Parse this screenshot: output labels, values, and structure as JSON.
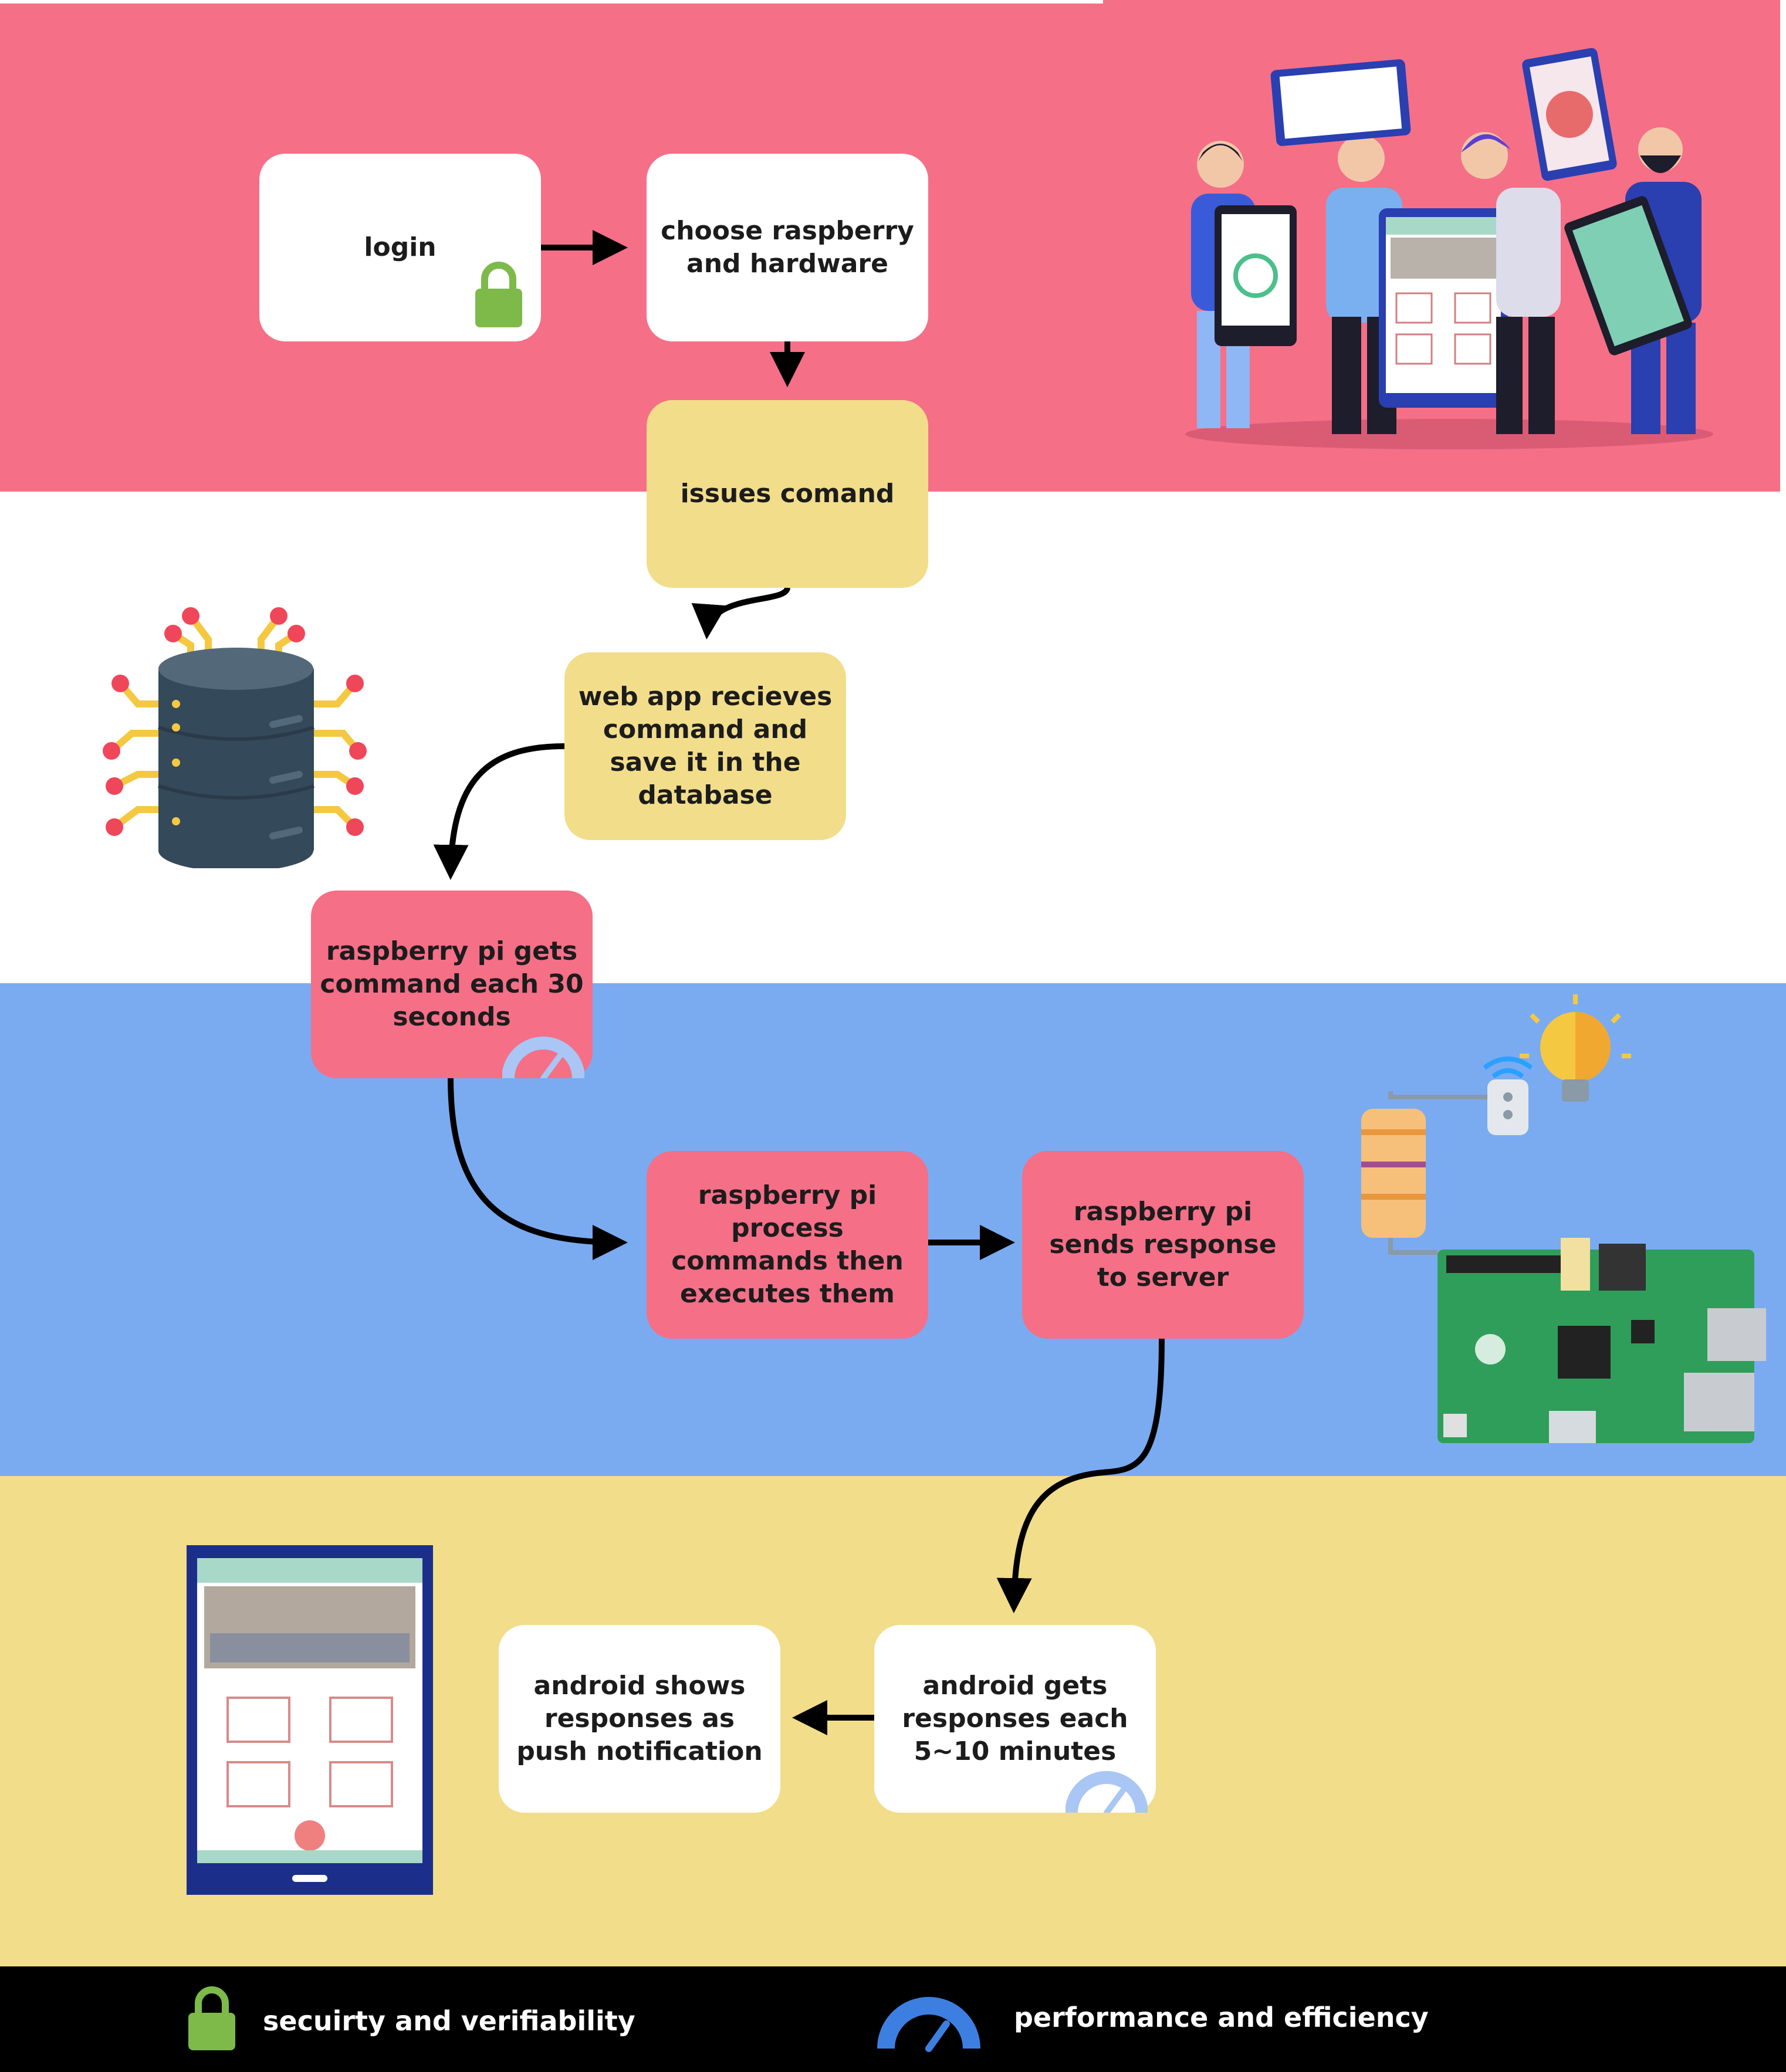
{
  "nodes": {
    "login": "login",
    "choose": "choose raspberry and hardware",
    "issues": "issues comand",
    "webapp": "web app recieves command and save it in the database",
    "pi_gets": "raspberry pi gets command each 30 seconds",
    "pi_process": "raspberry pi  process commands then executes them",
    "pi_sends": "raspberry pi  sends response to server",
    "android_gets": "android gets responses each 5~10 minutes",
    "android_shows": "android shows responses as push notification"
  },
  "legend": {
    "security": "secuirty and verifiability",
    "performance": "performance and efficiency"
  },
  "colors": {
    "band_pink": "#f56f87",
    "band_blue": "#7aabf1",
    "band_yellow": "#f2dd8a",
    "footer": "#000000",
    "lock": "#7dba4a",
    "gauge": "#3d7fe0"
  },
  "icons": {
    "login": "lock-icon",
    "pi_gets": "gauge-icon",
    "android_gets": "gauge-icon",
    "legend_security": "lock-icon",
    "legend_performance": "gauge-icon"
  }
}
